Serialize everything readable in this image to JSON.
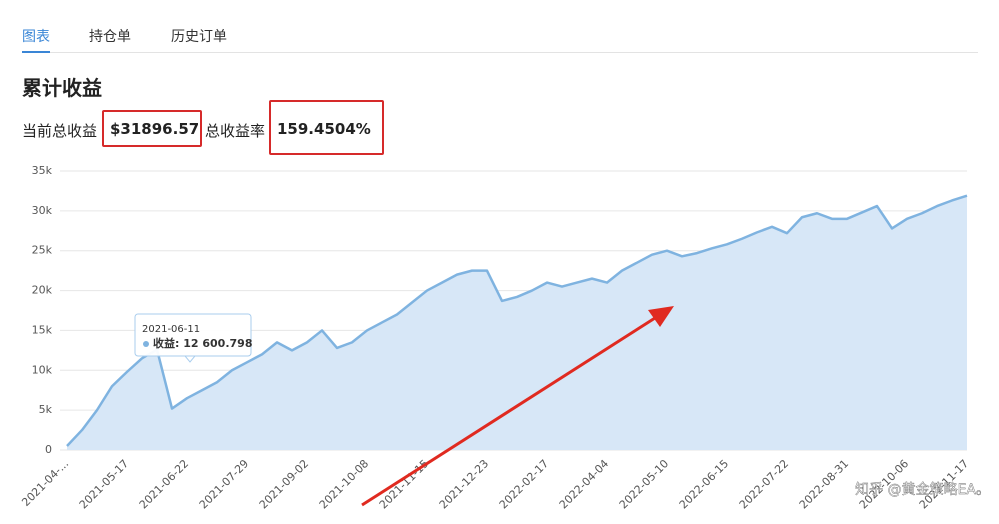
{
  "tabs": [
    "图表",
    "持仓单",
    "历史订单"
  ],
  "title": "累计收益",
  "stats": [
    {
      "label": "当前总收益",
      "value": "$31896.57"
    },
    {
      "label": "总收益率",
      "value": "159.4504%"
    }
  ],
  "tooltip": {
    "date": "2021-06-11",
    "text": "收益: 12 600.798"
  },
  "watermark": "知乎 @黄金策略EA。",
  "chart_data": {
    "type": "area",
    "categories": [
      "2021-04-...",
      null,
      null,
      null,
      "2021-05-17",
      null,
      null,
      null,
      "2021-06-22",
      null,
      null,
      null,
      "2021-07-29",
      null,
      null,
      null,
      "2021-09-02",
      null,
      null,
      null,
      "2021-10-08",
      null,
      null,
      null,
      "2021-11-15",
      null,
      null,
      null,
      "2021-12-23",
      null,
      null,
      null,
      "2022-02-17",
      null,
      null,
      null,
      "2022-04-04",
      null,
      null,
      null,
      "2022-05-10",
      null,
      null,
      null,
      "2022-06-15",
      null,
      null,
      null,
      "2022-07-22",
      null,
      null,
      null,
      "2022-08-31",
      null,
      null,
      null,
      "2022-10-06",
      null,
      null,
      null,
      "2022-11-17"
    ],
    "values": [
      500,
      2500,
      5000,
      8000,
      9800,
      11500,
      12600.798,
      5200,
      6500,
      7500,
      8500,
      10000,
      11000,
      12000,
      13500,
      12500,
      13500,
      15000,
      12800,
      13500,
      15000,
      16000,
      17000,
      18500,
      20000,
      21000,
      22000,
      22500,
      22500,
      18700,
      19200,
      20000,
      21000,
      20500,
      21000,
      21500,
      21000,
      22500,
      23500,
      24500,
      25000,
      24300,
      24700,
      25300,
      25800,
      26500,
      27300,
      28000,
      27200,
      29200,
      29700,
      29000,
      29000,
      29800,
      30600,
      27800,
      29000,
      29700,
      30600,
      31300,
      31900
    ],
    "color": "#7fb3e0",
    "ylim": [
      0,
      35000
    ],
    "yticks": [
      {
        "value": 0,
        "label": "0"
      },
      {
        "value": 5000,
        "label": "5k"
      },
      {
        "value": 10000,
        "label": "10k"
      },
      {
        "value": 15000,
        "label": "15k"
      },
      {
        "value": 20000,
        "label": "20k"
      },
      {
        "value": 25000,
        "label": "25k"
      },
      {
        "value": 30000,
        "label": "30k"
      },
      {
        "value": 35000,
        "label": "35k"
      }
    ],
    "grid": true
  }
}
